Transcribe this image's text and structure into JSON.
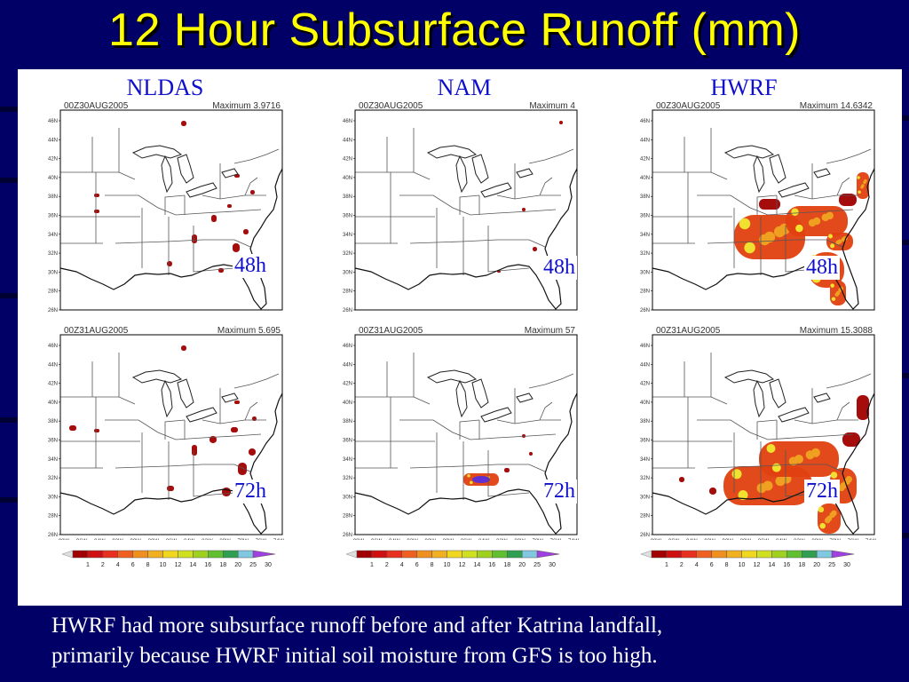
{
  "slide": {
    "title": "12 Hour Subsurface Runoff (mm)",
    "columns": [
      "NLDAS",
      "NAM",
      "HWRF"
    ],
    "caption_line1": "HWRF had more subsurface runoff  before and after Katrina landfall,",
    "caption_line2": "primarily because HWRF initial soil moisture from GFS is too high."
  },
  "maps": [
    {
      "model": "NLDAS",
      "date": "00Z30AUG2005",
      "maximum": "Maximum  3.9716",
      "lead": "48h"
    },
    {
      "model": "NAM",
      "date": "00Z30AUG2005",
      "maximum": "Maximum  4",
      "lead": "48h"
    },
    {
      "model": "HWRF",
      "date": "00Z30AUG2005",
      "maximum": "Maximum  14.6342",
      "lead": "48h"
    },
    {
      "model": "NLDAS",
      "date": "00Z31AUG2005",
      "maximum": "Maximum  5.695",
      "lead": "72h"
    },
    {
      "model": "NAM",
      "date": "00Z31AUG2005",
      "maximum": "Maximum  57",
      "lead": "72h"
    },
    {
      "model": "HWRF",
      "date": "00Z31AUG2005",
      "maximum": "Maximum  15.3088",
      "lead": "72h"
    }
  ],
  "lat_labels": [
    "46N",
    "44N",
    "42N",
    "40N",
    "38N",
    "36N",
    "34N",
    "32N",
    "30N",
    "28N",
    "26N"
  ],
  "lon_labels": [
    "98W",
    "96W",
    "94W",
    "92W",
    "90W",
    "88W",
    "86W",
    "84W",
    "82W",
    "80W",
    "78W",
    "76W",
    "74W"
  ],
  "colorbar": {
    "labels": [
      "1",
      "2",
      "4",
      "6",
      "8",
      "10",
      "12",
      "14",
      "16",
      "18",
      "20",
      "25",
      "30"
    ],
    "colors": [
      "#a00000",
      "#d01010",
      "#e83020",
      "#f06020",
      "#f09020",
      "#f0b020",
      "#f0d820",
      "#d0e020",
      "#a0d020",
      "#60c030",
      "#30a050",
      "#80c8e0",
      "#a040e0"
    ],
    "under_color": "#e0e0e0"
  },
  "runoff_color_scale": {
    "low": "#a00000",
    "mid": "#e04010",
    "high": "#f0a020",
    "peak": "#f0e030"
  }
}
